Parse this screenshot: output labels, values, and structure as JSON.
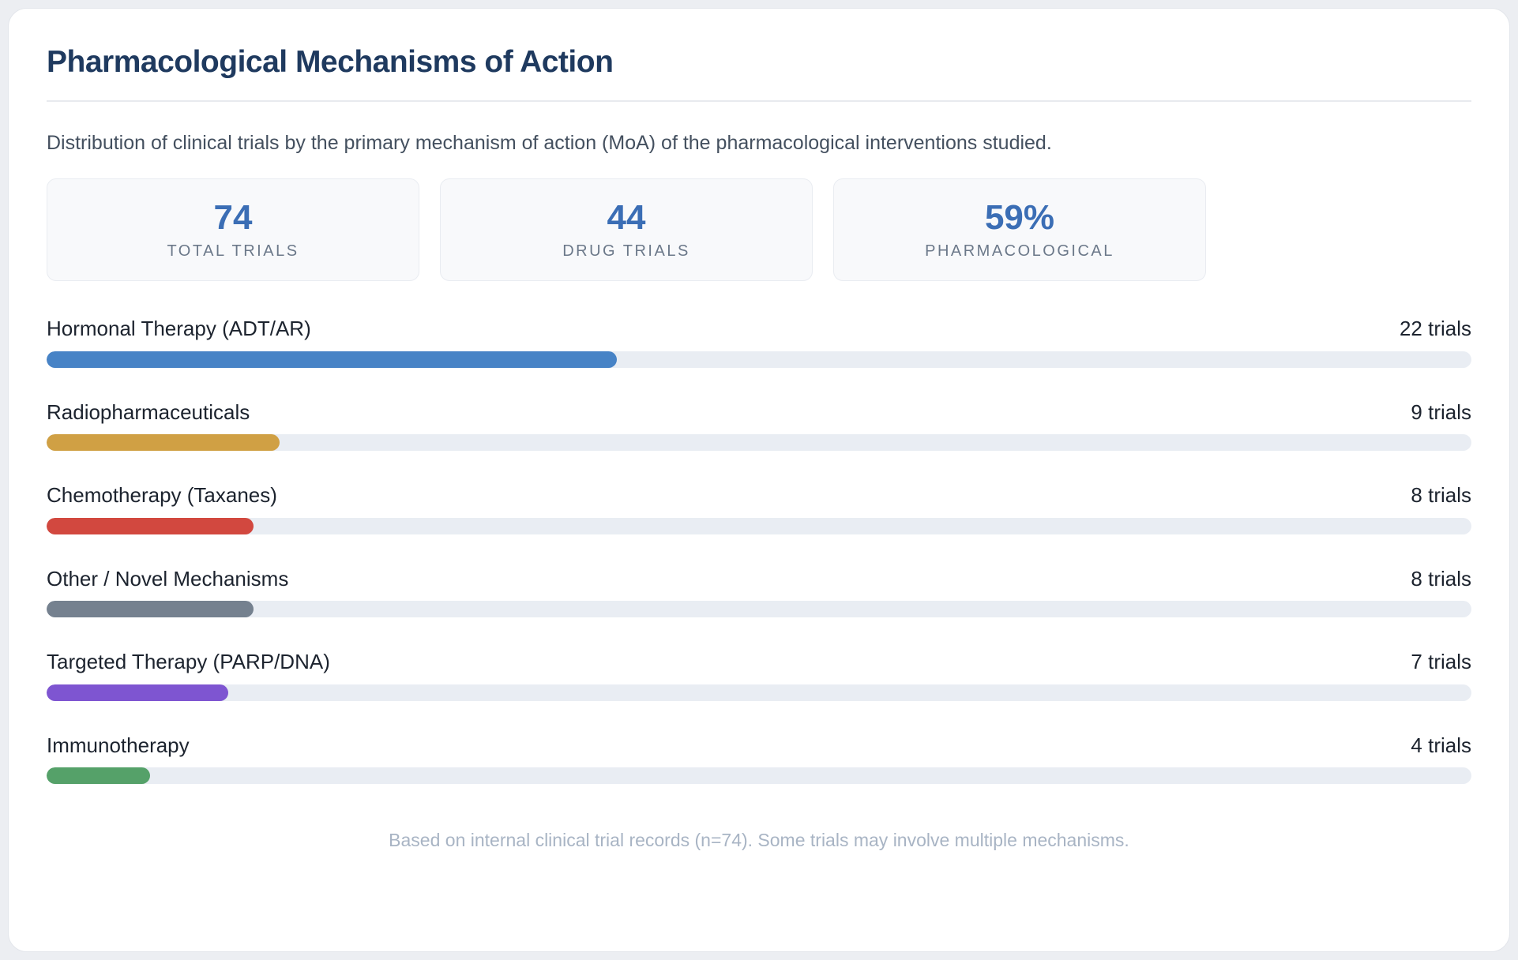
{
  "header": {
    "title": "Pharmacological Mechanisms of Action",
    "subtitle": "Distribution of clinical trials by the primary mechanism of action (MoA) of the pharmacological interventions studied."
  },
  "stats": [
    {
      "value": "74",
      "label": "TOTAL TRIALS"
    },
    {
      "value": "44",
      "label": "DRUG TRIALS"
    },
    {
      "value": "59%",
      "label": "PHARMACOLOGICAL"
    }
  ],
  "chart_data": {
    "type": "bar",
    "orientation": "horizontal",
    "categories": [
      "Hormonal Therapy (ADT/AR)",
      "Radiopharmaceuticals",
      "Chemotherapy (Taxanes)",
      "Other / Novel Mechanisms",
      "Targeted Therapy (PARP/DNA)",
      "Immunotherapy"
    ],
    "values": [
      22,
      9,
      8,
      8,
      7,
      4
    ],
    "value_labels": [
      "22 trials",
      "9 trials",
      "8 trials",
      "8 trials",
      "7 trials",
      "4 trials"
    ],
    "colors": [
      "#4783c6",
      "#d0a044",
      "#d2483f",
      "#75818f",
      "#7e55d1",
      "#55a169"
    ],
    "scale_max": 55,
    "track_color": "#e9edf3",
    "legend_position": "none",
    "grid": false
  },
  "colors": {
    "title": "#1f3a5f",
    "stat_value": "#3b6eb5",
    "page_background": "#eceef2",
    "card_background": "#ffffff"
  },
  "footer": {
    "note": "Based on internal clinical trial records (n=74). Some trials may involve multiple mechanisms."
  }
}
